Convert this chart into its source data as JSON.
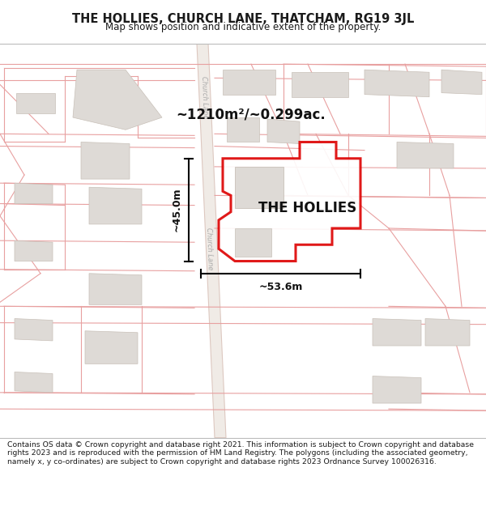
{
  "title": "THE HOLLIES, CHURCH LANE, THATCHAM, RG19 3JL",
  "subtitle": "Map shows position and indicative extent of the property.",
  "footer": "Contains OS data © Crown copyright and database right 2021. This information is subject to Crown copyright and database rights 2023 and is reproduced with the permission of HM Land Registry. The polygons (including the associated geometry, namely x, y co-ordinates) are subject to Crown copyright and database rights 2023 Ordnance Survey 100026316.",
  "property_label": "THE HOLLIES",
  "area_label": "~1210m²/~0.299ac.",
  "width_label": "~53.6m",
  "height_label": "~45.0m",
  "road_label": "Church Lane",
  "map_bg": "#ffffff",
  "road_fill": "#f0ebe6",
  "road_edge": "#ddc8c0",
  "plot_fill": "#e8e4e0",
  "plot_edge": "#ccc4bc",
  "bldg_fill": "#dedad6",
  "bldg_edge": "#c8c0b8",
  "pink_line": "#e8a0a0",
  "red_outline": "#dd0000",
  "title_color": "#1a1a1a",
  "dim_color": "#111111",
  "road_label_color": "#aaaaaa",
  "footer_color": "#1a1a1a"
}
